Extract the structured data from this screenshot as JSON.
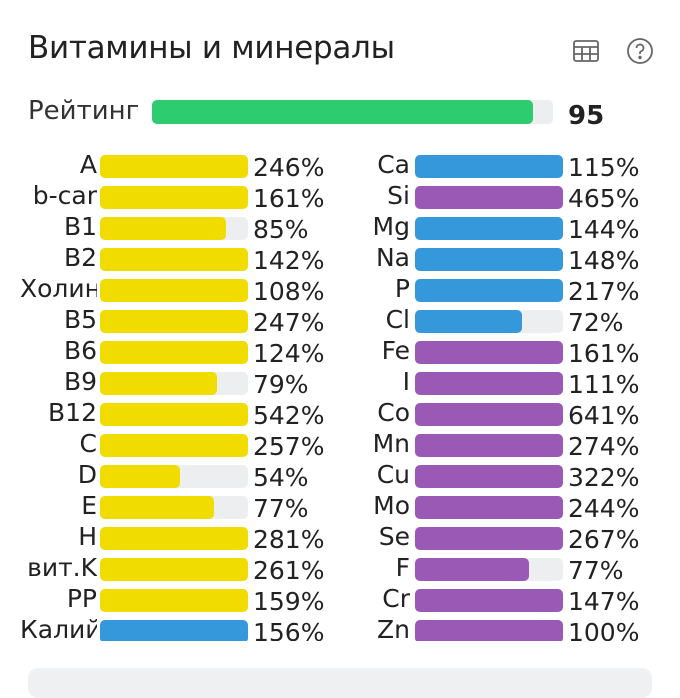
{
  "header": {
    "title": "Витамины и минералы",
    "icons": [
      "table-icon",
      "help-icon"
    ]
  },
  "rating": {
    "label": "Рейтинг",
    "value": "95",
    "fraction": 0.95,
    "color": "#2ecc71"
  },
  "colors": {
    "yellow": "#f1dc00",
    "blue": "#3498db",
    "purple": "#9b59b6",
    "track": "#eceef0"
  },
  "vitamins": [
    {
      "label": "A",
      "pct": "246%",
      "value": 246,
      "color": "yellow"
    },
    {
      "label": "b-car",
      "pct": "161%",
      "value": 161,
      "color": "yellow"
    },
    {
      "label": "B1",
      "pct": "85%",
      "value": 85,
      "color": "yellow"
    },
    {
      "label": "B2",
      "pct": "142%",
      "value": 142,
      "color": "yellow"
    },
    {
      "label": "Холин",
      "pct": "108%",
      "value": 108,
      "color": "yellow"
    },
    {
      "label": "B5",
      "pct": "247%",
      "value": 247,
      "color": "yellow"
    },
    {
      "label": "B6",
      "pct": "124%",
      "value": 124,
      "color": "yellow"
    },
    {
      "label": "B9",
      "pct": "79%",
      "value": 79,
      "color": "yellow"
    },
    {
      "label": "B12",
      "pct": "542%",
      "value": 542,
      "color": "yellow"
    },
    {
      "label": "C",
      "pct": "257%",
      "value": 257,
      "color": "yellow"
    },
    {
      "label": "D",
      "pct": "54%",
      "value": 54,
      "color": "yellow"
    },
    {
      "label": "E",
      "pct": "77%",
      "value": 77,
      "color": "yellow"
    },
    {
      "label": "H",
      "pct": "281%",
      "value": 281,
      "color": "yellow"
    },
    {
      "label": "вит.K",
      "pct": "261%",
      "value": 261,
      "color": "yellow"
    },
    {
      "label": "PP",
      "pct": "159%",
      "value": 159,
      "color": "yellow"
    },
    {
      "label": "Калий",
      "pct": "156%",
      "value": 156,
      "color": "blue"
    }
  ],
  "minerals": [
    {
      "label": "Ca",
      "pct": "115%",
      "value": 115,
      "color": "blue"
    },
    {
      "label": "Si",
      "pct": "465%",
      "value": 465,
      "color": "purple"
    },
    {
      "label": "Mg",
      "pct": "144%",
      "value": 144,
      "color": "blue"
    },
    {
      "label": "Na",
      "pct": "148%",
      "value": 148,
      "color": "blue"
    },
    {
      "label": "P",
      "pct": "217%",
      "value": 217,
      "color": "blue"
    },
    {
      "label": "Cl",
      "pct": "72%",
      "value": 72,
      "color": "blue"
    },
    {
      "label": "Fe",
      "pct": "161%",
      "value": 161,
      "color": "purple"
    },
    {
      "label": "I",
      "pct": "111%",
      "value": 111,
      "color": "purple"
    },
    {
      "label": "Co",
      "pct": "641%",
      "value": 641,
      "color": "purple"
    },
    {
      "label": "Mn",
      "pct": "274%",
      "value": 274,
      "color": "purple"
    },
    {
      "label": "Cu",
      "pct": "322%",
      "value": 322,
      "color": "purple"
    },
    {
      "label": "Mo",
      "pct": "244%",
      "value": 244,
      "color": "purple"
    },
    {
      "label": "Se",
      "pct": "267%",
      "value": 267,
      "color": "purple"
    },
    {
      "label": "F",
      "pct": "77%",
      "value": 77,
      "color": "purple"
    },
    {
      "label": "Cr",
      "pct": "147%",
      "value": 147,
      "color": "purple"
    },
    {
      "label": "Zn",
      "pct": "100%",
      "value": 100,
      "color": "purple"
    }
  ]
}
